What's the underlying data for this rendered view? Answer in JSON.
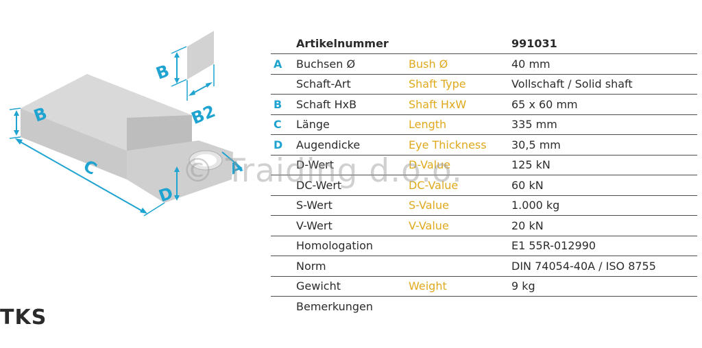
{
  "drawing": {
    "dim_b": "B",
    "dim_b2": "B2",
    "dim_c": "C",
    "dim_d": "D",
    "dim_a": "A",
    "accent_color": "#1fa3d0"
  },
  "table": {
    "header": {
      "label": "Artikelnummer",
      "value": "991031"
    },
    "rows": [
      {
        "letter": "A",
        "de": "Buchsen Ø",
        "en": "Bush Ø",
        "value": "40 mm"
      },
      {
        "letter": "",
        "de": "Schaft-Art",
        "en": "Shaft Type",
        "value": "Vollschaft / Solid shaft"
      },
      {
        "letter": "B",
        "de": "Schaft HxB",
        "en": "Shaft HxW",
        "value": "65 x 60 mm"
      },
      {
        "letter": "C",
        "de": "Länge",
        "en": "Length",
        "value": "335 mm"
      },
      {
        "letter": "D",
        "de": "Augendicke",
        "en": "Eye Thickness",
        "value": "30,5 mm"
      },
      {
        "letter": "",
        "de": "D-Wert",
        "en": "D-Value",
        "value": "125 kN"
      },
      {
        "letter": "",
        "de": "DC-Wert",
        "en": "DC-Value",
        "value": "60 kN"
      },
      {
        "letter": "",
        "de": "S-Wert",
        "en": "S-Value",
        "value": "1.000 kg"
      },
      {
        "letter": "",
        "de": "V-Wert",
        "en": "V-Value",
        "value": "20 kN"
      },
      {
        "letter": "",
        "de": "Homologation",
        "en": "",
        "value": "E1 55R-012990"
      },
      {
        "letter": "",
        "de": "Norm",
        "en": "",
        "value": "DIN 74054-40A / ISO 8755"
      },
      {
        "letter": "",
        "de": "Gewicht",
        "en": "Weight",
        "value": "9 kg"
      },
      {
        "letter": "",
        "de": "Bemerkungen",
        "en": "",
        "value": ""
      }
    ]
  },
  "watermark": "© Traiding d.o.o.",
  "brand_fragment": "TKS",
  "colors": {
    "letter": "#1fa3d0",
    "english": "#e0a91c"
  }
}
